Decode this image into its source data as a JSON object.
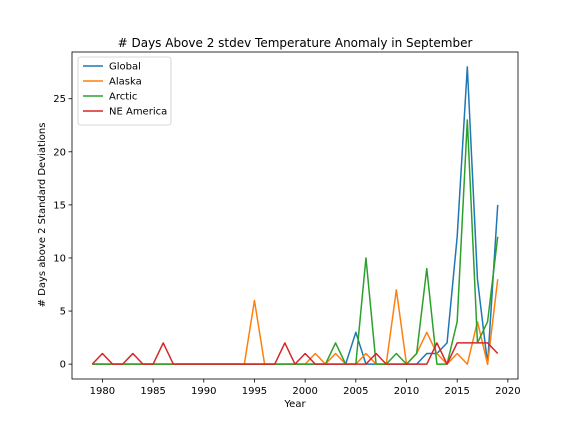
{
  "chart_data": {
    "type": "line",
    "title": "# Days Above 2 stdev Temperature Anomaly in September",
    "xlabel": "Year",
    "ylabel": "# Days above 2 Standard Deviations",
    "xlim": [
      1977,
      2021
    ],
    "ylim": [
      -1.4,
      29.4
    ],
    "xticks": [
      1980,
      1985,
      1990,
      1995,
      2000,
      2005,
      2010,
      2015,
      2020
    ],
    "yticks": [
      0,
      5,
      10,
      15,
      20,
      25
    ],
    "grid": false,
    "legend": "upper-left",
    "x": [
      1979,
      1980,
      1981,
      1982,
      1983,
      1984,
      1985,
      1986,
      1987,
      1988,
      1989,
      1990,
      1991,
      1992,
      1993,
      1994,
      1995,
      1996,
      1997,
      1998,
      1999,
      2000,
      2001,
      2002,
      2003,
      2004,
      2005,
      2006,
      2007,
      2008,
      2009,
      2010,
      2011,
      2012,
      2013,
      2014,
      2015,
      2016,
      2017,
      2018,
      2019
    ],
    "series": [
      {
        "name": "Global",
        "color": "#1f77b4",
        "values": [
          0,
          0,
          0,
          0,
          0,
          0,
          0,
          0,
          0,
          0,
          0,
          0,
          0,
          0,
          0,
          0,
          0,
          0,
          0,
          0,
          0,
          0,
          0,
          0,
          0,
          0,
          3,
          0,
          0,
          0,
          0,
          0,
          0,
          1,
          1,
          2,
          12,
          28,
          8,
          0,
          15
        ]
      },
      {
        "name": "Alaska",
        "color": "#ff7f0e",
        "values": [
          0,
          0,
          0,
          0,
          0,
          0,
          0,
          0,
          0,
          0,
          0,
          0,
          0,
          0,
          0,
          0,
          6,
          0,
          0,
          0,
          0,
          0,
          1,
          0,
          1,
          0,
          0,
          1,
          0,
          0,
          7,
          0,
          1,
          3,
          1,
          0,
          1,
          0,
          4,
          0,
          8
        ]
      },
      {
        "name": "Arctic",
        "color": "#2ca02c",
        "values": [
          0,
          0,
          0,
          0,
          0,
          0,
          0,
          0,
          0,
          0,
          0,
          0,
          0,
          0,
          0,
          0,
          0,
          0,
          0,
          0,
          0,
          0,
          0,
          0,
          2,
          0,
          0,
          10,
          0,
          0,
          1,
          0,
          1,
          9,
          0,
          0,
          4,
          23,
          2,
          4,
          12
        ]
      },
      {
        "name": "NE America",
        "color": "#d62728",
        "values": [
          0,
          1,
          0,
          0,
          1,
          0,
          0,
          2,
          0,
          0,
          0,
          0,
          0,
          0,
          0,
          0,
          0,
          0,
          0,
          2,
          0,
          1,
          0,
          0,
          0,
          0,
          0,
          0,
          1,
          0,
          0,
          0,
          0,
          0,
          2,
          0,
          2,
          2,
          2,
          2,
          1
        ]
      }
    ]
  }
}
